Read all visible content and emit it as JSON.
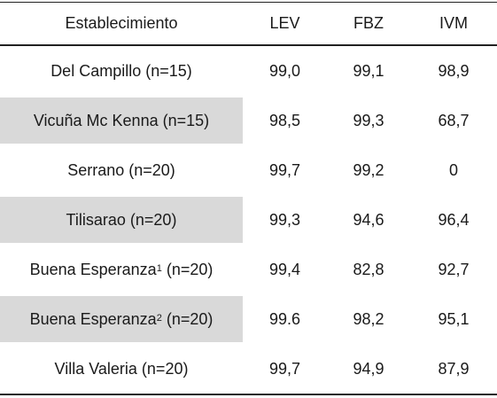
{
  "table": {
    "headers": {
      "establishment": "Establecimiento",
      "lev": "LEV",
      "fbz": "FBZ",
      "ivm": "IVM"
    },
    "rows": [
      {
        "name": "Del Campillo",
        "sup": "",
        "n": "(n=15)",
        "lev": "99,0",
        "fbz": "99,1",
        "ivm": "98,9",
        "shaded": false
      },
      {
        "name": "Vicuña Mc Kenna",
        "sup": "",
        "n": "(n=15)",
        "lev": "98,5",
        "fbz": "99,3",
        "ivm": "68,7",
        "shaded": true
      },
      {
        "name": "Serrano",
        "sup": "",
        "n": "(n=20)",
        "lev": "99,7",
        "fbz": "99,2",
        "ivm": "0",
        "shaded": false
      },
      {
        "name": "Tilisarao",
        "sup": "",
        "n": "(n=20)",
        "lev": "99,3",
        "fbz": "94,6",
        "ivm": "96,4",
        "shaded": true
      },
      {
        "name": "Buena Esperanza",
        "sup": "1",
        "n": "(n=20)",
        "lev": "99,4",
        "fbz": "82,8",
        "ivm": "92,7",
        "shaded": false
      },
      {
        "name": "Buena Esperanza",
        "sup": "2",
        "n": "(n=20)",
        "lev": "99.6",
        "fbz": "98,2",
        "ivm": "95,1",
        "shaded": true
      },
      {
        "name": "Villa Valeria",
        "sup": "",
        "n": "(n=20)",
        "lev": "99,7",
        "fbz": "94,9",
        "ivm": "87,9",
        "shaded": false
      }
    ]
  }
}
